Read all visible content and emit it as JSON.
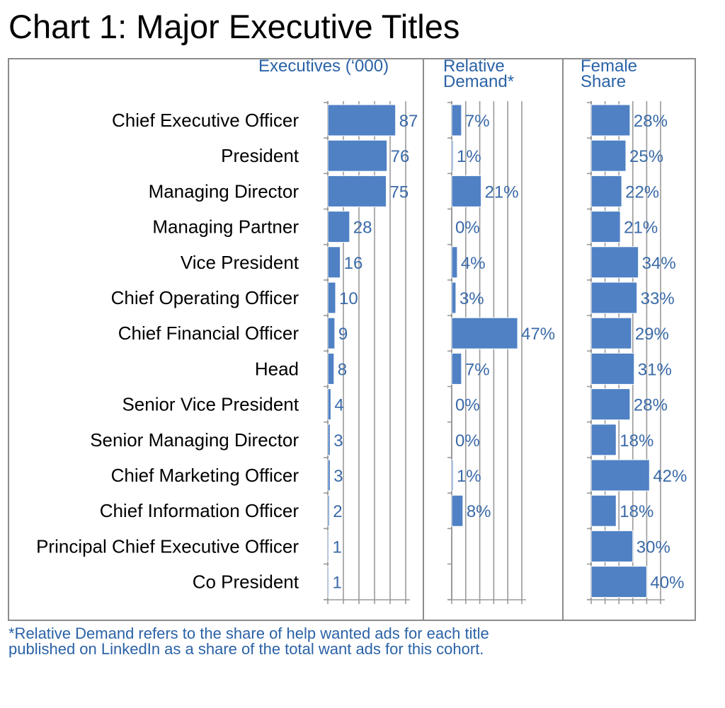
{
  "title": "Chart 1: Major Executive Titles",
  "footnote": {
    "line1": "*Relative Demand refers to the share of help wanted ads for each title",
    "line2": "published on LinkedIn as a share of the total want ads for this cohort."
  },
  "colors": {
    "bar": "#4f81c4",
    "value_text": "#3a6aa8",
    "header_text": "#2a62a6",
    "border": "#8c8c8c"
  },
  "chart_data": {
    "type": "bar",
    "orientation": "horizontal",
    "categories": [
      "Chief Executive Officer",
      "President",
      "Managing Director",
      "Managing Partner",
      "Vice President",
      "Chief Operating Officer",
      "Chief Financial Officer",
      "Head",
      "Senior Vice President",
      "Senior Managing Director",
      "Chief Marketing Officer",
      "Chief Information Officer",
      "Principal Chief Executive Officer",
      "Co President"
    ],
    "panels": [
      {
        "name": "Executives (‘000)",
        "values": [
          87,
          76,
          75,
          28,
          16,
          10,
          9,
          8,
          4,
          3,
          3,
          2,
          1,
          1
        ],
        "labels": [
          "87",
          "76",
          "75",
          "28",
          "16",
          "10",
          "9",
          "8",
          "4",
          "3",
          "3",
          "2",
          "1",
          "1"
        ],
        "xlim": [
          0,
          100
        ]
      },
      {
        "name": "Relative Demand*",
        "values": [
          7,
          1,
          21,
          0,
          4,
          3,
          47,
          7,
          0,
          0,
          1,
          8,
          null,
          null
        ],
        "labels": [
          "7%",
          "1%",
          "21%",
          "0%",
          "4%",
          "3%",
          "47%",
          "7%",
          "0%",
          "0%",
          "1%",
          "8%",
          "",
          ""
        ],
        "xlim": [
          0,
          50
        ]
      },
      {
        "name": "Female Share",
        "values": [
          28,
          25,
          22,
          21,
          34,
          33,
          29,
          31,
          28,
          18,
          42,
          18,
          30,
          40
        ],
        "labels": [
          "28%",
          "25%",
          "22%",
          "21%",
          "34%",
          "33%",
          "29%",
          "31%",
          "28%",
          "18%",
          "42%",
          "18%",
          "30%",
          "40%"
        ],
        "xlim": [
          0,
          50
        ]
      }
    ]
  }
}
